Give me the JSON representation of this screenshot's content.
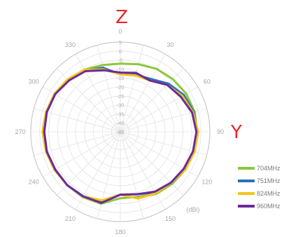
{
  "chart_data": {
    "type": "polar-line",
    "axis_labels": {
      "top": "Z",
      "right": "Y"
    },
    "unit": "(dBi)",
    "r_range": [
      -45,
      5
    ],
    "r_ticks": [
      5,
      0,
      -5,
      -10,
      -15,
      -20,
      -25,
      -30,
      -35,
      -40,
      -45
    ],
    "theta_ticks": [
      "0",
      "30",
      "60",
      "90",
      "120",
      "150",
      "180",
      "210",
      "240",
      "270",
      "300",
      "330"
    ],
    "theta_tick_values": [
      0,
      30,
      60,
      90,
      120,
      150,
      180,
      210,
      240,
      270,
      300,
      330
    ],
    "grid": true,
    "legend_position": "right",
    "series": [
      {
        "name": "704MHz",
        "color": "#8dc63f",
        "theta": [
          0,
          15,
          30,
          45,
          60,
          75,
          90,
          105,
          120,
          135,
          150,
          165,
          180,
          195,
          210,
          225,
          240,
          255,
          270,
          285,
          300,
          315,
          330,
          345
        ],
        "r": [
          -7,
          -6,
          -4.5,
          -3.5,
          -2.5,
          -2,
          -2,
          -2.5,
          -3,
          -4,
          -5,
          -7.5,
          -8,
          -3.5,
          -3,
          -3,
          -3,
          -2.5,
          -2.5,
          -2.5,
          -3,
          -4,
          -5,
          -6.5
        ]
      },
      {
        "name": "751MHz",
        "color": "#2e6fba",
        "theta": [
          0,
          15,
          30,
          45,
          60,
          75,
          90,
          105,
          120,
          135,
          150,
          165,
          180,
          195,
          210,
          225,
          240,
          255,
          270,
          285,
          300,
          315,
          330,
          345
        ],
        "r": [
          -13,
          -12,
          -11,
          -7,
          -4,
          -2.5,
          -2,
          -2.5,
          -3.5,
          -5,
          -6,
          -9,
          -10,
          -4.5,
          -3.5,
          -3,
          -3,
          -2.5,
          -2.5,
          -2.5,
          -3,
          -4,
          -5.5,
          -8
        ]
      },
      {
        "name": "824MHz",
        "color": "#f5c518",
        "theta": [
          0,
          15,
          30,
          45,
          60,
          75,
          90,
          105,
          120,
          135,
          150,
          165,
          180,
          195,
          210,
          225,
          240,
          255,
          270,
          285,
          300,
          315,
          330,
          345
        ],
        "r": [
          -13,
          -12.5,
          -12,
          -8,
          -5,
          -3,
          -1.5,
          -2,
          -3,
          -5,
          -5.5,
          -6.5,
          -10,
          -5.5,
          -3.5,
          -3,
          -2.5,
          -2,
          -1.5,
          -2,
          -2.5,
          -3.5,
          -5,
          -9
        ]
      },
      {
        "name": "960MHz",
        "color": "#6d2a9c",
        "theta": [
          0,
          15,
          30,
          45,
          60,
          75,
          90,
          105,
          120,
          135,
          150,
          165,
          180,
          195,
          210,
          225,
          240,
          255,
          270,
          285,
          300,
          315,
          330,
          345
        ],
        "r": [
          -12,
          -11,
          -12,
          -8,
          -6,
          -3.5,
          -2.5,
          -3,
          -4,
          -5,
          -6.5,
          -9,
          -10,
          -4,
          -3.5,
          -3,
          -3,
          -2.5,
          -2.5,
          -2.5,
          -3,
          -4.5,
          -6,
          -9.5
        ]
      }
    ]
  }
}
